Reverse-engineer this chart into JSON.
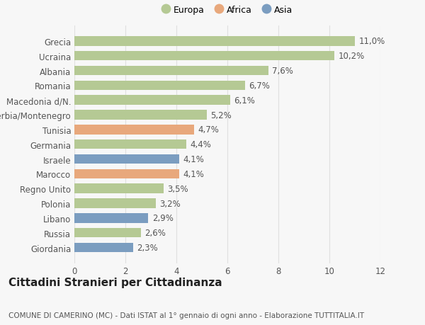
{
  "categories": [
    "Giordania",
    "Russia",
    "Libano",
    "Polonia",
    "Regno Unito",
    "Marocco",
    "Israele",
    "Germania",
    "Tunisia",
    "Serbia/Montenegro",
    "Macedonia d/N.",
    "Romania",
    "Albania",
    "Ucraina",
    "Grecia"
  ],
  "values": [
    2.3,
    2.6,
    2.9,
    3.2,
    3.5,
    4.1,
    4.1,
    4.4,
    4.7,
    5.2,
    6.1,
    6.7,
    7.6,
    10.2,
    11.0
  ],
  "labels": [
    "2,3%",
    "2,6%",
    "2,9%",
    "3,2%",
    "3,5%",
    "4,1%",
    "4,1%",
    "4,4%",
    "4,7%",
    "5,2%",
    "6,1%",
    "6,7%",
    "7,6%",
    "10,2%",
    "11,0%"
  ],
  "continent": [
    "Asia",
    "Europa",
    "Asia",
    "Europa",
    "Europa",
    "Africa",
    "Asia",
    "Europa",
    "Africa",
    "Europa",
    "Europa",
    "Europa",
    "Europa",
    "Europa",
    "Europa"
  ],
  "colors": {
    "Europa": "#b5c994",
    "Africa": "#e8a87c",
    "Asia": "#7b9dc0"
  },
  "xlim": [
    0,
    12
  ],
  "xticks": [
    0,
    2,
    4,
    6,
    8,
    10,
    12
  ],
  "title": "Cittadini Stranieri per Cittadinanza",
  "subtitle": "COMUNE DI CAMERINO (MC) - Dati ISTAT al 1° gennaio di ogni anno - Elaborazione TUTTITALIA.IT",
  "background_color": "#f7f7f7",
  "grid_color": "#e0e0e0",
  "label_fontsize": 8.5,
  "ylabel_fontsize": 8.5,
  "title_fontsize": 11,
  "subtitle_fontsize": 7.5
}
